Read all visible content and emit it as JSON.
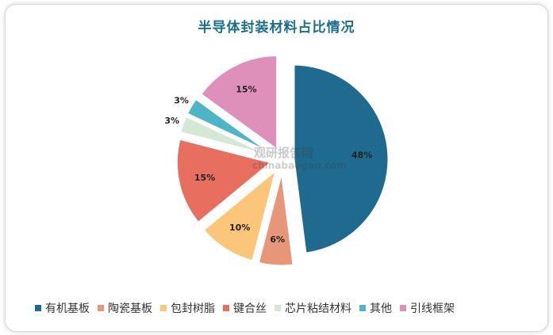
{
  "chart_data": {
    "type": "pie",
    "title": "半导体封装材料占比情况",
    "categories": [
      "有机基板",
      "陶瓷基板",
      "包封树脂",
      "键合丝",
      "芯片粘结材料",
      "其他",
      "引线框架"
    ],
    "values": [
      48,
      6,
      10,
      15,
      3,
      3,
      15
    ],
    "value_labels": [
      "48%",
      "6%",
      "10%",
      "15%",
      "3%",
      "3%",
      "15%"
    ],
    "colors": [
      "#1f6b8f",
      "#e8967a",
      "#fcc67a",
      "#e86f60",
      "#d3e8d5",
      "#4cb6c6",
      "#de8fba"
    ],
    "legend_position": "bottom",
    "exploded": true
  },
  "watermark": {
    "text": "观研报告网",
    "subtext": "chinabaogao.com"
  }
}
